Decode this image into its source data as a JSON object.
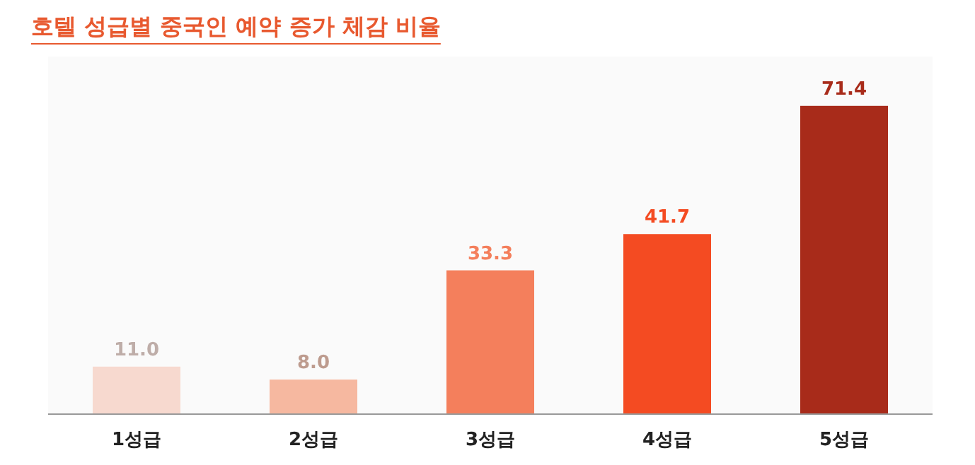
{
  "chart_data": {
    "type": "bar",
    "title": "호텔 성급별 중국인 예약 증가 체감 비율",
    "categories": [
      "1성급",
      "2성급",
      "3성급",
      "4성급",
      "5성급"
    ],
    "values": [
      11.0,
      8.0,
      33.3,
      41.7,
      71.4
    ],
    "colors": [
      "#f7d9cf",
      "#f6b8a0",
      "#f47f5c",
      "#f44b22",
      "#a82b1a"
    ],
    "value_labels": [
      "11.0",
      "8.0",
      "33.3",
      "41.7",
      "71.4"
    ]
  }
}
